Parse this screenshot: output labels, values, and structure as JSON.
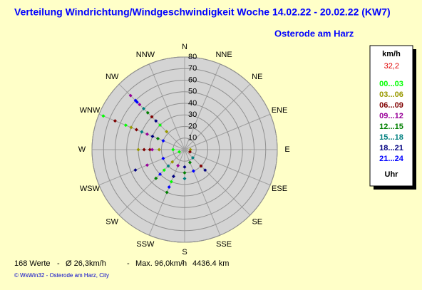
{
  "chart_data": {
    "type": "polar",
    "title": "Verteilung Windrichtung/Windgeschwindigkeit  Woche 14.02.22 - 20.02.22 (KW7)",
    "subtitle": "Osterode am Harz",
    "directions": [
      "N",
      "NNE",
      "NE",
      "ENE",
      "E",
      "ESE",
      "SE",
      "SSE",
      "S",
      "SSW",
      "SW",
      "WSW",
      "W",
      "WNW",
      "NW",
      "NNW"
    ],
    "rlim": [
      0,
      80
    ],
    "rticks": [
      10,
      20,
      30,
      40,
      50,
      60,
      70,
      80
    ],
    "legend_title": "km/h",
    "legend_highlight": "32,2",
    "legend_footer": "Uhr",
    "series": [
      {
        "name": "00...03",
        "color": "#00ff00",
        "theta": [
          292.5,
          292.5,
          270,
          315,
          202.5,
          225,
          247.5
        ],
        "r": [
          76,
          55,
          10,
          30,
          30,
          25,
          5
        ]
      },
      {
        "name": "03...06",
        "color": "#999900",
        "theta": [
          292.5,
          270,
          270,
          315,
          225,
          90
        ],
        "r": [
          50,
          40,
          22,
          22,
          15,
          5
        ]
      },
      {
        "name": "06...09",
        "color": "#800000",
        "theta": [
          292.5,
          292.5,
          270,
          270,
          315,
          135,
          112.5
        ],
        "r": [
          65,
          45,
          30,
          35,
          40,
          20,
          5
        ]
      },
      {
        "name": "09...12",
        "color": "#990099",
        "theta": [
          315,
          315,
          270,
          292.5,
          247.5,
          202.5
        ],
        "r": [
          66,
          55,
          28,
          35,
          35,
          15
        ]
      },
      {
        "name": "12...15",
        "color": "#008000",
        "theta": [
          315,
          292.5,
          225,
          202.5,
          180,
          157.5
        ],
        "r": [
          45,
          25,
          35,
          40,
          20,
          12
        ]
      },
      {
        "name": "15...18",
        "color": "#008080",
        "theta": [
          315,
          292.5,
          225,
          180,
          135
        ],
        "r": [
          50,
          40,
          20,
          25,
          10
        ]
      },
      {
        "name": "18...21",
        "color": "#000080",
        "theta": [
          315,
          292.5,
          247.5,
          202.5,
          180,
          135
        ],
        "r": [
          35,
          30,
          46,
          25,
          15,
          25
        ]
      },
      {
        "name": "21...24",
        "color": "#0000ff",
        "theta": [
          315,
          315,
          292.5,
          247.5,
          225,
          202.5,
          157.5
        ],
        "r": [
          60,
          58,
          20,
          20,
          30,
          35,
          20
        ]
      }
    ],
    "footer_stats": [
      "168 Werte",
      "-",
      "Ø 26,3km/h",
      "-",
      "Max. 96,0km/h",
      "-",
      "4436.4 km"
    ],
    "copyright": "© WsWin32  -  Osterode am Harz, City"
  }
}
